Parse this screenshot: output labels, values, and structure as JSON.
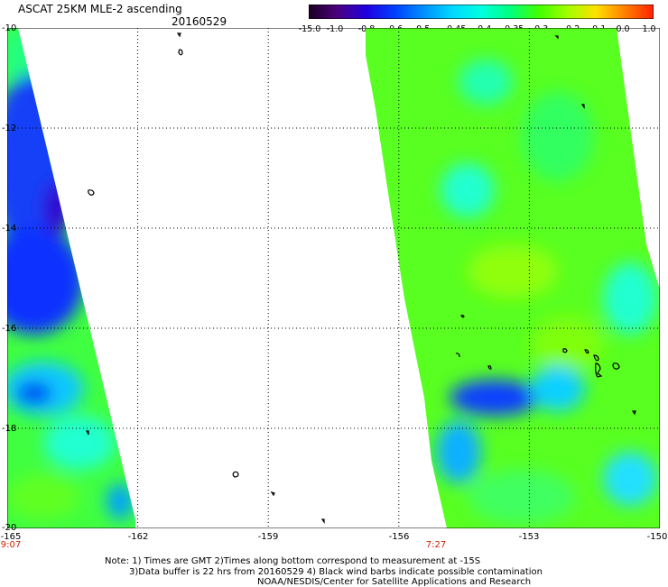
{
  "header": {
    "title": "ASCAT 25KM MLE-2 ascending",
    "date": "20160529"
  },
  "colorbar": {
    "labels": [
      "-15.0",
      "-1.0",
      "-0.8",
      "-0.6",
      "-0.5",
      "-0.45",
      "-0.4",
      "-0.35",
      "-0.3",
      "-0.2",
      "-0.1",
      "0.0",
      "1.0"
    ],
    "colors": [
      "#1a0020",
      "#4a0080",
      "#2000e0",
      "#0040ff",
      "#0090ff",
      "#00d8ff",
      "#00ffe0",
      "#00ff80",
      "#40ff00",
      "#a0ff00",
      "#ffe000",
      "#ff8000",
      "#ff2000"
    ]
  },
  "map": {
    "lat_labels": [
      "-10",
      "-12",
      "-14",
      "-16",
      "-18",
      "-20"
    ],
    "lon_labels": [
      "-165",
      "-162",
      "-159",
      "-156",
      "-153",
      "-150"
    ],
    "lat_range": [
      -20,
      -10
    ],
    "lon_range": [
      -165,
      -150
    ],
    "grid": true,
    "swaths": [
      {
        "name": "west",
        "time": "9:07"
      },
      {
        "name": "east",
        "time": "7:27"
      }
    ]
  },
  "notes": {
    "line1": "Note: 1) Times are GMT 2)Times along bottom correspond to measurement at -15S",
    "line2": "3)Data buffer is 22 hrs from 20160529 4) Black wind barbs indicate possible contamination",
    "line3": "NOAA/NESDIS/Center for Satellite Applications and Research"
  }
}
